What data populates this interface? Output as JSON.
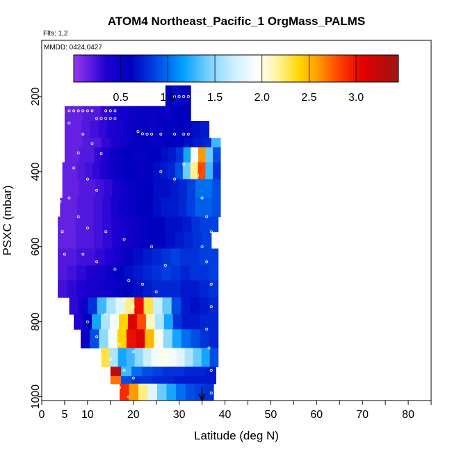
{
  "chart_data": {
    "type": "heatmap",
    "title": "ATOM4 Northeast_Pacific_1 OrgMass_PALMS",
    "note_flights": "Flts: 1,2",
    "note_dates": "MMDD: 0424,0427",
    "xlabel": "Latitude (deg N)",
    "ylabel": "PSXC (mbar)",
    "xlim": [
      0,
      85
    ],
    "ylim": [
      1010,
      50
    ],
    "y_reversed": true,
    "x_ticks": [
      0,
      5,
      10,
      20,
      30,
      40,
      50,
      60,
      70,
      80
    ],
    "x_minor_ticks": [
      15,
      25,
      35,
      45,
      55,
      65,
      75,
      85
    ],
    "y_ticks": [
      200,
      400,
      600,
      800,
      1000
    ],
    "grid": false,
    "legend": "top colorbar",
    "colorbar": {
      "range": [
        0,
        3.45
      ],
      "ticks": [
        0.5,
        1.0,
        1.5,
        2.0,
        2.5,
        3.0
      ],
      "tick_labels": [
        "0.5",
        "1.0",
        "1.5",
        "2.0",
        "2.5",
        "3.0"
      ],
      "color_stops": [
        [
          0.0,
          "#9a39ee"
        ],
        [
          0.35,
          "#1e00d2"
        ],
        [
          0.6,
          "#0000bf"
        ],
        [
          0.85,
          "#003fe0"
        ],
        [
          1.15,
          "#009cff"
        ],
        [
          1.45,
          "#7fd4ff"
        ],
        [
          1.7,
          "#cceeff"
        ],
        [
          1.95,
          "#ffffff"
        ],
        [
          2.15,
          "#fff6a8"
        ],
        [
          2.4,
          "#ffd500"
        ],
        [
          2.6,
          "#ff9a00"
        ],
        [
          2.8,
          "#ff4a00"
        ],
        [
          3.05,
          "#e60000"
        ],
        [
          3.45,
          "#9e1515"
        ]
      ]
    },
    "bands": [
      {
        "p_top": 170,
        "p_bot": 225,
        "lat_start": 27,
        "lat_end": 32.5,
        "values": [
          0.6,
          0.65,
          0.55,
          0.6
        ]
      },
      {
        "p_top": 225,
        "p_bot": 265,
        "lat_start": 5,
        "lat_end": 32.5,
        "values": [
          0.15,
          0.15,
          0.2,
          0.2,
          0.3,
          0.35,
          0.45,
          0.5,
          0.55,
          0.5,
          0.55,
          0.5,
          0.6,
          0.6
        ]
      },
      {
        "p_top": 265,
        "p_bot": 310,
        "lat_start": 5,
        "lat_end": 36.5,
        "values": [
          0.15,
          0.15,
          0.2,
          0.25,
          0.3,
          0.35,
          0.4,
          0.5,
          0.55,
          0.55,
          0.5,
          0.55,
          0.6,
          0.6,
          0.6,
          0.65,
          0.7
        ]
      },
      {
        "p_top": 310,
        "p_bot": 335,
        "lat_start": 5,
        "lat_end": 39,
        "values": [
          0.15,
          0.15,
          0.2,
          0.2,
          0.3,
          0.35,
          0.45,
          0.55,
          0.6,
          0.55,
          0.55,
          0.6,
          0.6,
          0.65,
          0.7,
          0.75,
          1.3
        ]
      },
      {
        "p_top": 335,
        "p_bot": 375,
        "lat_start": 5,
        "lat_end": 39,
        "values": [
          0.15,
          0.15,
          0.2,
          0.2,
          0.3,
          0.35,
          0.45,
          0.55,
          0.6,
          0.55,
          0.55,
          0.6,
          0.6,
          0.65,
          0.7,
          0.8,
          1.2,
          1.9,
          2.6,
          1.4,
          0.9
        ]
      },
      {
        "p_top": 375,
        "p_bot": 420,
        "lat_start": 4.5,
        "lat_end": 39,
        "values": [
          0.15,
          0.15,
          0.2,
          0.25,
          0.3,
          0.35,
          0.45,
          0.55,
          0.6,
          0.6,
          0.55,
          0.6,
          0.65,
          0.7,
          0.75,
          0.9,
          1.4,
          2.2,
          2.8,
          1.3,
          0.8
        ]
      },
      {
        "p_top": 420,
        "p_bot": 470,
        "lat_start": 4.5,
        "lat_end": 39,
        "values": [
          0.15,
          0.15,
          0.2,
          0.2,
          0.25,
          0.3,
          0.4,
          0.5,
          0.55,
          0.6,
          0.6,
          0.65,
          0.65,
          0.7,
          0.75,
          0.85,
          1.0,
          1.0,
          0.9
        ]
      },
      {
        "p_top": 470,
        "p_bot": 520,
        "lat_start": 4,
        "lat_end": 39,
        "values": [
          0.15,
          0.15,
          0.2,
          0.2,
          0.25,
          0.3,
          0.4,
          0.5,
          0.55,
          0.6,
          0.6,
          0.65,
          0.7,
          0.7,
          0.75,
          0.85,
          0.95,
          0.95,
          0.9
        ]
      },
      {
        "p_top": 520,
        "p_bot": 560,
        "lat_start": 3.5,
        "lat_end": 38.5,
        "values": [
          0.15,
          0.15,
          0.2,
          0.2,
          0.25,
          0.3,
          0.35,
          0.45,
          0.5,
          0.55,
          0.6,
          0.6,
          0.65,
          0.65,
          0.7,
          0.8,
          0.85,
          0.85
        ]
      },
      {
        "p_top": 560,
        "p_bot": 605,
        "lat_start": 3.5,
        "lat_end": 37,
        "values": [
          0.15,
          0.15,
          0.2,
          0.2,
          0.25,
          0.3,
          0.35,
          0.45,
          0.5,
          0.55,
          0.6,
          0.6,
          0.65,
          0.7,
          0.75,
          0.8,
          0.85
        ]
      },
      {
        "p_top": 605,
        "p_bot": 650,
        "lat_start": 3.5,
        "lat_end": 38.5,
        "values": [
          0.2,
          0.2,
          0.25,
          0.25,
          0.3,
          0.35,
          0.45,
          0.55,
          0.65,
          0.7,
          0.75,
          0.8,
          0.85,
          0.8,
          0.8,
          0.85,
          0.85
        ]
      },
      {
        "p_top": 650,
        "p_bot": 690,
        "lat_start": 3.5,
        "lat_end": 38.5,
        "values": [
          0.2,
          0.25,
          0.3,
          0.35,
          0.4,
          0.5,
          0.6,
          0.65,
          0.7,
          0.75,
          0.8,
          0.85,
          0.8,
          0.75,
          0.8,
          0.8,
          0.85
        ]
      },
      {
        "p_top": 690,
        "p_bot": 735,
        "lat_start": 3.5,
        "lat_end": 38.5,
        "values": [
          0.25,
          0.3,
          0.35,
          0.4,
          0.45,
          0.5,
          0.55,
          0.6,
          0.65,
          0.7,
          0.75,
          0.75,
          0.75,
          0.7,
          0.7,
          0.75,
          0.8
        ]
      },
      {
        "p_top": 735,
        "p_bot": 780,
        "lat_start": 6,
        "lat_end": 38.5,
        "values": [
          0.3,
          0.45,
          0.8,
          1.3,
          1.6,
          1.8,
          2.2,
          3.0,
          2.3,
          1.7,
          1.4,
          0.9,
          0.7,
          0.65,
          0.7,
          0.75
        ]
      },
      {
        "p_top": 780,
        "p_bot": 820,
        "lat_start": 7,
        "lat_end": 38.5,
        "values": [
          0.35,
          0.6,
          1.2,
          1.6,
          1.9,
          2.4,
          3.1,
          2.8,
          2.1,
          1.6,
          1.2,
          0.8,
          0.7,
          0.7,
          0.75,
          0.75
        ]
      },
      {
        "p_top": 820,
        "p_bot": 870,
        "lat_start": 8.5,
        "lat_end": 38.5,
        "values": [
          0.5,
          0.9,
          1.5,
          1.9,
          2.4,
          3.0,
          3.1,
          2.5,
          2.0,
          1.5,
          1.2,
          1.0,
          0.9,
          0.8,
          0.75
        ]
      },
      {
        "p_top": 870,
        "p_bot": 920,
        "lat_start": 13,
        "lat_end": 38.5,
        "values": [
          2.3,
          1.6,
          1.2,
          1.3,
          1.5,
          1.7,
          1.9,
          2.0,
          1.9,
          1.8,
          1.6,
          1.4,
          1.2,
          0.9
        ]
      },
      {
        "p_top": 920,
        "p_bot": 945,
        "lat_start": 15,
        "lat_end": 38,
        "values": [
          3.3,
          1.3,
          1.0,
          0.9,
          0.85,
          0.8,
          0.8,
          0.75,
          0.75,
          0.7
        ]
      },
      {
        "p_top": 945,
        "p_bot": 965,
        "lat_start": 15,
        "lat_end": 38,
        "values": [
          2.7,
          0.9,
          0.8,
          0.8,
          0.75,
          0.75,
          0.7,
          0.7,
          0.7,
          0.7
        ]
      },
      {
        "p_top": 965,
        "p_bot": 1010,
        "lat_start": 17,
        "lat_end": 37.5,
        "values": [
          2.9,
          2.6,
          2.2,
          1.8,
          1.4,
          1.2,
          1.0,
          0.9,
          0.85,
          0.8
        ]
      }
    ],
    "sample_points": [
      [
        6,
        238
      ],
      [
        7,
        238
      ],
      [
        8,
        238
      ],
      [
        9,
        238
      ],
      [
        10,
        238
      ],
      [
        11,
        238
      ],
      [
        14,
        238
      ],
      [
        15,
        238
      ],
      [
        16,
        238
      ],
      [
        12,
        258
      ],
      [
        13,
        258
      ],
      [
        14,
        258
      ],
      [
        15,
        258
      ],
      [
        16,
        258
      ],
      [
        29,
        200
      ],
      [
        30,
        200
      ],
      [
        31,
        200
      ],
      [
        32,
        200
      ],
      [
        21,
        293
      ],
      [
        22,
        299
      ],
      [
        23,
        300
      ],
      [
        24,
        300
      ],
      [
        26,
        300
      ],
      [
        29,
        300
      ],
      [
        31,
        300
      ],
      [
        32,
        300
      ],
      [
        6,
        270
      ],
      [
        9,
        300
      ],
      [
        11,
        325
      ],
      [
        13,
        352
      ],
      [
        8,
        350
      ],
      [
        7,
        390
      ],
      [
        10,
        420
      ],
      [
        12,
        450
      ],
      [
        6,
        470
      ],
      [
        8,
        520
      ],
      [
        10,
        550
      ],
      [
        14,
        560
      ],
      [
        18,
        580
      ],
      [
        9,
        620
      ],
      [
        12,
        640
      ],
      [
        16,
        660
      ],
      [
        19,
        690
      ],
      [
        22,
        700
      ],
      [
        25,
        720
      ],
      [
        18,
        740
      ],
      [
        20,
        760
      ],
      [
        14,
        780
      ],
      [
        10,
        800
      ],
      [
        12,
        840
      ],
      [
        17,
        860
      ],
      [
        20,
        880
      ],
      [
        15,
        900
      ],
      [
        18,
        930
      ],
      [
        20,
        950
      ],
      [
        17,
        975
      ],
      [
        19,
        1000
      ],
      [
        33,
        390
      ],
      [
        34,
        410
      ],
      [
        35,
        470
      ],
      [
        36,
        520
      ],
      [
        37,
        560
      ],
      [
        35,
        600
      ],
      [
        36,
        640
      ],
      [
        37,
        700
      ],
      [
        37,
        760
      ],
      [
        36,
        820
      ],
      [
        36.5,
        870
      ],
      [
        37,
        930
      ],
      [
        37,
        990
      ],
      [
        4,
        480
      ],
      [
        4.5,
        560
      ],
      [
        5,
        620
      ],
      [
        26,
        400
      ],
      [
        29,
        420
      ],
      [
        31,
        380
      ],
      [
        24,
        600
      ],
      [
        27,
        650
      ]
    ],
    "arrow_lat": 35
  }
}
